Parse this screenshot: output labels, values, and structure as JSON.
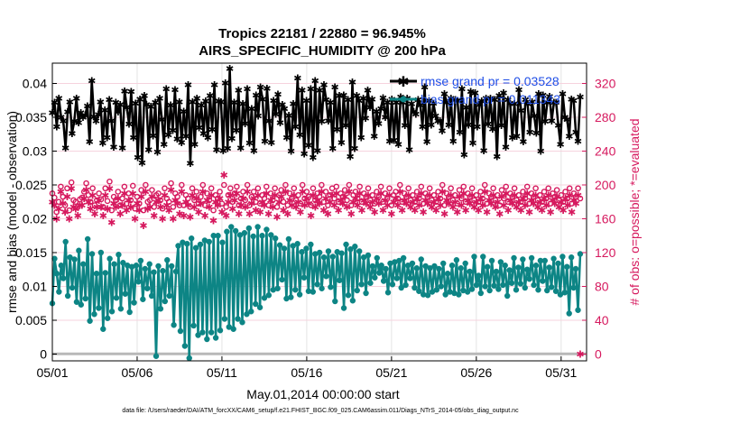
{
  "chart_data": {
    "type": "line",
    "title_line1": "Tropics 22181 / 22880 = 96.945%",
    "title_line2": "AIRS_SPECIFIC_HUMIDITY @ 200 hPa",
    "xlabel": "May.01,2014 00:00:00 start",
    "ylabel": "rmse and bias (model - observation)",
    "ylabel_right": "# of obs: o=possible; *=evaluated",
    "footer": "data file: /Users/raeder/DAI/ATM_forcXX/CAM6_setup/f.e21.FHIST_BGC.f09_025.CAM6assim.011/Diags_NTrS_2014-05/obs_diag_output.nc",
    "xlim": [
      1,
      32.5
    ],
    "ylim": [
      -0.001,
      0.043
    ],
    "ylim_right": [
      -8,
      344
    ],
    "x_ticks": [
      1,
      6,
      11,
      16,
      21,
      26,
      31
    ],
    "x_tick_labels": [
      "05/01",
      "05/06",
      "05/11",
      "05/16",
      "05/21",
      "05/26",
      "05/31"
    ],
    "y_ticks": [
      0,
      0.005,
      0.01,
      0.015,
      0.02,
      0.025,
      0.03,
      0.035,
      0.04
    ],
    "y_tick_labels": [
      "0",
      "0.005",
      "0.01",
      "0.015",
      "0.02",
      "0.025",
      "0.03",
      "0.035",
      "0.04"
    ],
    "y_ticks_right": [
      0,
      40,
      80,
      120,
      160,
      200,
      240,
      280,
      320
    ],
    "y_tick_labels_right": [
      "0",
      "40",
      "80",
      "120",
      "160",
      "200",
      "240",
      "280",
      "320"
    ],
    "grid": true,
    "legend_position": "top-right",
    "series": [
      {
        "name": "rmse",
        "legend": "rmse grand pr = 0.03528",
        "color": "#000000",
        "marker": "star",
        "axis": "left",
        "values": [
          0.0357,
          0.0372,
          0.0336,
          0.0378,
          0.035,
          0.0345,
          0.0305,
          0.0358,
          0.0373,
          0.0326,
          0.0344,
          0.0378,
          0.0342,
          0.0357,
          0.035,
          0.0353,
          0.0367,
          0.0314,
          0.0404,
          0.0351,
          0.0345,
          0.0354,
          0.0373,
          0.0312,
          0.0361,
          0.032,
          0.0376,
          0.0345,
          0.0306,
          0.0372,
          0.0358,
          0.0369,
          0.0305,
          0.0389,
          0.0365,
          0.034,
          0.0388,
          0.032,
          0.0371,
          0.0291,
          0.0377,
          0.0283,
          0.0382,
          0.0369,
          0.0302,
          0.0366,
          0.0323,
          0.0372,
          0.0299,
          0.0378,
          0.0347,
          0.031,
          0.0392,
          0.0324,
          0.0368,
          0.0331,
          0.0391,
          0.0318,
          0.0373,
          0.0313,
          0.0359,
          0.0322,
          0.0398,
          0.0282,
          0.0373,
          0.031,
          0.0378,
          0.0335,
          0.0368,
          0.0326,
          0.0374,
          0.032,
          0.0382,
          0.0332,
          0.0398,
          0.0302,
          0.0374,
          0.0373,
          0.0301,
          0.0401,
          0.0304,
          0.0422,
          0.0319,
          0.0372,
          0.0331,
          0.039,
          0.0305,
          0.037,
          0.0341,
          0.0392,
          0.0312,
          0.0363,
          0.0301,
          0.0383,
          0.0352,
          0.0395,
          0.0377,
          0.0315,
          0.0393,
          0.0345,
          0.0313,
          0.0375,
          0.0355,
          0.0384,
          0.0342,
          0.0369,
          0.0363,
          0.032,
          0.0353,
          0.03,
          0.037,
          0.0336,
          0.0408,
          0.0324,
          0.039,
          0.0296,
          0.0375,
          0.0309,
          0.0392,
          0.0291,
          0.0404,
          0.0301,
          0.039,
          0.0344,
          0.0398,
          0.0376,
          0.0345,
          0.0372,
          0.0304,
          0.0395,
          0.0332,
          0.0382,
          0.0313,
          0.0383,
          0.0338,
          0.0376,
          0.0292,
          0.0402,
          0.0304,
          0.0382,
          0.0375,
          0.032,
          0.0378,
          0.0349,
          0.039,
          0.0365,
          0.0377,
          0.0322,
          0.0359,
          0.0341,
          0.0363,
          0.0379,
          0.035,
          0.0372,
          0.0315,
          0.0377,
          0.0316,
          0.0372,
          0.031,
          0.038,
          0.0372,
          0.0338,
          0.0378,
          0.0302,
          0.037,
          0.0358,
          0.0355,
          0.0376,
          0.0368,
          0.0336,
          0.0395,
          0.0314,
          0.0375,
          0.0339,
          0.0371,
          0.0352,
          0.0345,
          0.0345,
          0.033,
          0.0385,
          0.0372,
          0.0339,
          0.0378,
          0.0315,
          0.0376,
          0.0375,
          0.0328,
          0.0392,
          0.0295,
          0.0365,
          0.0339,
          0.0388,
          0.0312,
          0.0386,
          0.0336,
          0.0369,
          0.0374,
          0.0301,
          0.0378,
          0.034,
          0.0378,
          0.0333,
          0.0376,
          0.0292,
          0.0382,
          0.0338,
          0.0386,
          0.0306,
          0.0376,
          0.0371,
          0.032,
          0.037,
          0.0322,
          0.0391,
          0.036,
          0.0314,
          0.0376,
          0.037,
          0.0328,
          0.0373,
          0.0352,
          0.0327,
          0.0385,
          0.03,
          0.0383,
          0.0344,
          0.0372,
          0.0381,
          0.0345,
          0.0372,
          0.0372,
          0.0338,
          0.031,
          0.0385,
          0.035,
          0.0347,
          0.0322,
          0.0377,
          0.0375,
          0.0328,
          0.0315,
          0.038
        ]
      },
      {
        "name": "bias",
        "legend": "bias grand pr = 0.011343",
        "color": "#0d8585",
        "marker": "circle",
        "axis": "left",
        "values": [
          0.0075,
          0.0141,
          0.0119,
          0.0092,
          0.0131,
          0.0112,
          0.0166,
          0.0086,
          0.0143,
          0.0098,
          0.014,
          0.0077,
          0.0153,
          0.0073,
          0.0133,
          0.0082,
          0.017,
          0.0049,
          0.0148,
          0.0059,
          0.0119,
          0.0068,
          0.015,
          0.0037,
          0.012,
          0.0053,
          0.0141,
          0.0063,
          0.0133,
          0.0083,
          0.0147,
          0.0067,
          0.0135,
          0.0089,
          0.0131,
          0.0062,
          0.0129,
          0.0076,
          0.0131,
          0.0107,
          0.0138,
          0.0081,
          0.0126,
          0.0097,
          0.0133,
          0.0086,
          0.0121,
          -0.0003,
          0.013,
          0.0067,
          0.0123,
          0.0078,
          0.0139,
          0.0086,
          0.013,
          0.0043,
          0.0122,
          0.016,
          0.0034,
          0.0165,
          0.0012,
          0.0163,
          -0.0006,
          0.0171,
          0.0042,
          0.0157,
          0.0028,
          0.0162,
          0.0032,
          0.0168,
          0.0022,
          0.0166,
          0.0032,
          0.0175,
          0.0024,
          0.0175,
          0.0035,
          0.0165,
          0.0052,
          0.0181,
          0.004,
          0.0188,
          0.0037,
          0.0182,
          0.0052,
          0.0176,
          0.0047,
          0.0179,
          0.0059,
          0.0186,
          0.0063,
          0.0174,
          0.0074,
          0.0188,
          0.0069,
          0.0175,
          0.0083,
          0.0184,
          0.0087,
          0.0176,
          0.0095,
          0.0171,
          0.0097,
          0.0161,
          0.011,
          0.0156,
          0.0082,
          0.017,
          0.0084,
          0.016,
          0.0095,
          0.0163,
          0.0088,
          0.0151,
          0.0113,
          0.0156,
          0.0093,
          0.0162,
          0.0092,
          0.0148,
          0.0103,
          0.015,
          0.0097,
          0.0143,
          0.0115,
          0.0152,
          0.0099,
          0.0144,
          0.0078,
          0.0151,
          0.0109,
          0.0149,
          0.0068,
          0.0162,
          0.0087,
          0.0155,
          0.0079,
          0.0159,
          0.0094,
          0.0152,
          0.0103,
          0.0143,
          0.009,
          0.0146,
          0.0105,
          0.013,
          0.0113,
          0.0142,
          0.012,
          0.0131,
          0.0108,
          0.0126,
          0.0091,
          0.0134,
          0.0103,
          0.0136,
          0.0112,
          0.0138,
          0.0098,
          0.0142,
          0.0102,
          0.0131,
          0.0112,
          0.0134,
          0.0098,
          0.0127,
          0.0093,
          0.014,
          0.0088,
          0.013,
          0.0087,
          0.0127,
          0.0092,
          0.013,
          0.0095,
          0.0126,
          0.01,
          0.0134,
          0.0088,
          0.0119,
          0.0092,
          0.0131,
          0.009,
          0.0139,
          0.0088,
          0.0127,
          0.0094,
          0.0134,
          0.0092,
          0.0122,
          0.0096,
          0.0144,
          0.0102,
          0.0116,
          0.009,
          0.0144,
          0.01,
          0.0129,
          0.0094,
          0.0138,
          0.0101,
          0.0122,
          0.0096,
          0.0136,
          0.0102,
          0.0131,
          0.0086,
          0.0124,
          0.0105,
          0.0142,
          0.0095,
          0.0128,
          0.0104,
          0.014,
          0.0098,
          0.0125,
          0.0111,
          0.0142,
          0.0102,
          0.0131,
          0.0095,
          0.0138,
          0.0108,
          0.0138,
          0.0094,
          0.0128,
          0.0099,
          0.0141,
          0.0093,
          0.0134,
          0.0088,
          0.0144,
          0.0091,
          0.0129,
          0.006,
          0.0143,
          0.0098,
          0.0126,
          0.0065,
          0.0148
        ]
      },
      {
        "name": "possible",
        "color": "#d6195e",
        "marker": "o",
        "axis": "right",
        "values": [
          190,
          185,
          168,
          180,
          198,
          186,
          176,
          196,
          170,
          203,
          182,
          180,
          174,
          183,
          185,
          192,
          202,
          188,
          180,
          196,
          176,
          182,
          190,
          183,
          174,
          196,
          181,
          204,
          170,
          186,
          182,
          192,
          176,
          184,
          198,
          178,
          190,
          182,
          199,
          172,
          186,
          178,
          194,
          170,
          200,
          180,
          182,
          194,
          174,
          188,
          190,
          182,
          172,
          196,
          184,
          180,
          202,
          174,
          190,
          186,
          176,
          200,
          176,
          188,
          184,
          174,
          196,
          182,
          192,
          178,
          186,
          200,
          176,
          190,
          182,
          196,
          170,
          188,
          184,
          192,
          178,
          200,
          174,
          188,
          196,
          180,
          190,
          198,
          176,
          184,
          192,
          182,
          200,
          176,
          186,
          192,
          180,
          196,
          178,
          188,
          184,
          198,
          176,
          190,
          182,
          196,
          174,
          188,
          194,
          180,
          200,
          176,
          190,
          184,
          196,
          182,
          188,
          178,
          200,
          184,
          192,
          186,
          176,
          196,
          182,
          190,
          186,
          200,
          180,
          192,
          176,
          188,
          196,
          184,
          198,
          180,
          190,
          186,
          194,
          182,
          200,
          176,
          188,
          192,
          184,
          198,
          180,
          190,
          186,
          196,
          182,
          188,
          178,
          192,
          186,
          198,
          180,
          190,
          184,
          196,
          176,
          188,
          192,
          184,
          200,
          180,
          190,
          186,
          196,
          182,
          188,
          180,
          192,
          184,
          198,
          178,
          190,
          186,
          196,
          182,
          188,
          180,
          192,
          184,
          200,
          176,
          190,
          186,
          196,
          182,
          188,
          178,
          194,
          184,
          198,
          180,
          190,
          186,
          196,
          182,
          188,
          180,
          192,
          184,
          200,
          178,
          190,
          186,
          196,
          182,
          188,
          176,
          194,
          184,
          198,
          180,
          190,
          186,
          196,
          182,
          188,
          180,
          192,
          184,
          198,
          178,
          190,
          186,
          196,
          182,
          188,
          180,
          192,
          184,
          196,
          178,
          190,
          186,
          194,
          182,
          188,
          180,
          192,
          184,
          196,
          178,
          190,
          186,
          196,
          184
        ]
      },
      {
        "name": "evaluated",
        "color": "#d6195e",
        "marker": "*",
        "axis": "right",
        "values": [
          180,
          176,
          160,
          172,
          192,
          178,
          168,
          186,
          160,
          196,
          174,
          172,
          164,
          176,
          176,
          184,
          194,
          180,
          172,
          188,
          166,
          174,
          182,
          174,
          164,
          188,
          172,
          196,
          156,
          178,
          174,
          184,
          166,
          176,
          190,
          170,
          182,
          174,
          190,
          160,
          178,
          170,
          186,
          152,
          192,
          172,
          174,
          186,
          164,
          180,
          182,
          174,
          160,
          188,
          176,
          170,
          194,
          160,
          182,
          178,
          166,
          192,
          164,
          180,
          176,
          162,
          188,
          174,
          184,
          168,
          178,
          192,
          164,
          182,
          174,
          188,
          158,
          180,
          176,
          184,
          168,
          212,
          164,
          180,
          188,
          172,
          182,
          190,
          166,
          176,
          184,
          174,
          192,
          166,
          178,
          184,
          170,
          188,
          168,
          180,
          176,
          190,
          166,
          182,
          174,
          188,
          162,
          180,
          186,
          170,
          192,
          166,
          182,
          176,
          188,
          174,
          180,
          168,
          192,
          176,
          184,
          178,
          164,
          188,
          174,
          182,
          178,
          192,
          170,
          184,
          166,
          180,
          188,
          176,
          190,
          170,
          182,
          178,
          186,
          174,
          192,
          166,
          180,
          184,
          176,
          190,
          170,
          182,
          178,
          188,
          174,
          180,
          168,
          184,
          178,
          190,
          170,
          182,
          176,
          188,
          166,
          180,
          184,
          176,
          192,
          170,
          182,
          178,
          188,
          174,
          180,
          170,
          184,
          176,
          190,
          168,
          182,
          178,
          188,
          174,
          180,
          170,
          184,
          176,
          192,
          166,
          182,
          178,
          188,
          174,
          180,
          168,
          186,
          176,
          190,
          170,
          182,
          178,
          188,
          174,
          180,
          170,
          184,
          176,
          192,
          168,
          182,
          178,
          188,
          174,
          180,
          166,
          186,
          176,
          190,
          170,
          182,
          178,
          188,
          174,
          180,
          170,
          184,
          176,
          190,
          168,
          182,
          178,
          188,
          174,
          180,
          170,
          184,
          176,
          188,
          168,
          182,
          178,
          186,
          174,
          180,
          170,
          184,
          176,
          188,
          168,
          182,
          178,
          188,
          0
        ]
      }
    ]
  }
}
